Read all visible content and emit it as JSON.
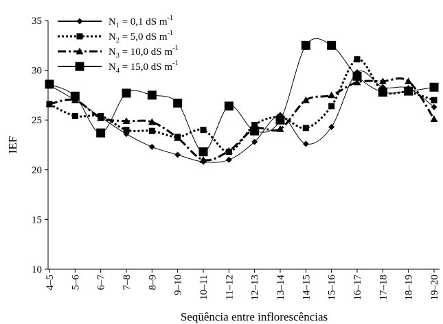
{
  "chart_data": {
    "type": "line",
    "xlabel": "Seqüência entre inflorescências",
    "ylabel": "IEF",
    "ylim": [
      10,
      35
    ],
    "yticks": [
      10,
      15,
      20,
      25,
      30,
      35
    ],
    "grid": false,
    "legend_position": "top-left",
    "categories": [
      "4–5",
      "5–6",
      "6–7",
      "7–8",
      "8–9",
      "9–10",
      "10–11",
      "11–12",
      "12–13",
      "13–14",
      "14–15",
      "15–16",
      "16–17",
      "17–18",
      "18–19",
      "19–20"
    ],
    "series": [
      {
        "name": "N1 = 0,1 dS m-1",
        "legend": {
          "n": "N",
          "sub": "1",
          "text": " = 0,1 dS m",
          "sup": "-1"
        },
        "marker": "diamond",
        "dash": "solid",
        "stroke_width": 1,
        "values": [
          28.5,
          27.0,
          25.3,
          23.6,
          22.3,
          21.5,
          20.8,
          21.0,
          22.8,
          25.5,
          22.6,
          24.3,
          29.8,
          28.3,
          28.2,
          26.3
        ]
      },
      {
        "name": "N2 = 5,0 dS m-1",
        "legend": {
          "n": "N",
          "sub": "2",
          "text": " = 5,0 dS m",
          "sup": "-1"
        },
        "marker": "square-small",
        "dash": "dotted",
        "stroke_width": 3,
        "values": [
          26.6,
          25.4,
          25.4,
          24.0,
          23.9,
          23.3,
          24.0,
          21.8,
          24.5,
          25.3,
          24.2,
          26.4,
          31.1,
          27.9,
          27.8,
          27.0
        ]
      },
      {
        "name": "N3 = 10,0 dS m-1",
        "legend": {
          "n": "N",
          "sub": "3",
          "text": " = 10,0 dS m",
          "sup": "-1"
        },
        "marker": "triangle",
        "dash": "dashdot",
        "stroke_width": 3,
        "values": [
          26.6,
          27.0,
          25.2,
          24.9,
          24.8,
          23.2,
          21.0,
          21.9,
          24.1,
          24.1,
          27.0,
          27.5,
          28.8,
          28.9,
          28.9,
          25.1
        ]
      },
      {
        "name": "N4 = 15,0 dS m-1",
        "legend": {
          "n": "N",
          "sub": "4",
          "text": " = 15,0 dS m",
          "sup": "-1"
        },
        "marker": "square-large",
        "dash": "solid",
        "stroke_width": 1,
        "values": [
          28.6,
          27.4,
          23.7,
          27.7,
          27.5,
          26.7,
          21.8,
          26.4,
          23.9,
          25.0,
          32.5,
          32.5,
          29.4,
          27.8,
          27.9,
          28.3
        ]
      }
    ]
  }
}
